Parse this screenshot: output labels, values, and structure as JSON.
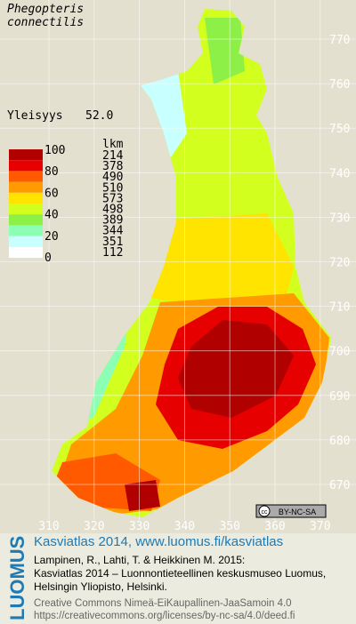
{
  "title": [
    "Phegopteris",
    "connectilis"
  ],
  "frequency": {
    "label": "Yleisyys",
    "value": "52.0"
  },
  "legend": {
    "scale_labels": [
      100,
      80,
      60,
      40,
      20,
      0
    ],
    "count_header": "lkm",
    "counts": [
      214,
      378,
      490,
      510,
      573,
      498,
      389,
      344,
      351,
      112
    ],
    "colors": [
      "#b00000",
      "#e60000",
      "#ff5a00",
      "#ff9a00",
      "#ffe400",
      "#d2ff1e",
      "#8cf046",
      "#8cffb4",
      "#c8ffff",
      "#ffffff"
    ]
  },
  "grid": {
    "y_labels": [
      770,
      760,
      750,
      740,
      730,
      720,
      710,
      700,
      690,
      680,
      670
    ],
    "x_labels": [
      310,
      320,
      330,
      340,
      350,
      360,
      370
    ]
  },
  "license_badge": "BY-NC-SA",
  "footer": {
    "brand": "LUOMUS",
    "headline": "Kasviatlas 2014, www.luomus.fi/kasviatlas",
    "citation": [
      "Lampinen, R., Lahti, T. & Heikkinen M. 2015:",
      "Kasviatlas 2014 – Luonnontieteellinen keskusmuseo Luomus,",
      "Helsingin Yliopisto, Helsinki."
    ],
    "license": [
      "Creative Commons Nimeä-EiKaupallinen-JaaSamoin 4.0",
      "https://creativecommons.org/licenses/by-nc-sa/4.0/deed.fi"
    ]
  }
}
